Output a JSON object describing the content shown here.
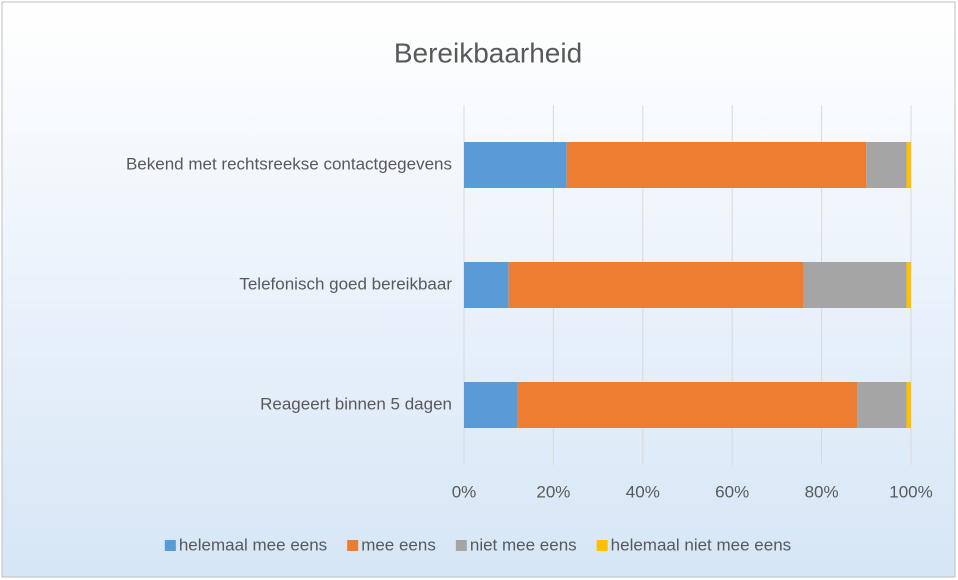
{
  "chart_data": {
    "type": "stacked_barh",
    "title": "Bereikbaarheid",
    "categories": [
      "Bekend met rechtsreekse contactgegevens",
      "Telefonisch goed bereikbaar",
      "Reageert binnen 5 dagen"
    ],
    "series": [
      {
        "name": "helemaal mee eens",
        "color": "#5b9bd5",
        "values": [
          23,
          10,
          12
        ]
      },
      {
        "name": "mee eens",
        "color": "#ed7d31",
        "values": [
          67,
          66,
          76
        ]
      },
      {
        "name": "niet mee eens",
        "color": "#a5a5a5",
        "values": [
          9,
          23,
          11
        ]
      },
      {
        "name": "helemaal niet mee eens",
        "color": "#ffc000",
        "values": [
          1,
          1,
          1
        ]
      }
    ],
    "xlim": [
      0,
      100
    ],
    "xticks": [
      {
        "value": 0,
        "label": "0%"
      },
      {
        "value": 20,
        "label": "20%"
      },
      {
        "value": 40,
        "label": "40%"
      },
      {
        "value": 60,
        "label": "60%"
      },
      {
        "value": 80,
        "label": "80%"
      },
      {
        "value": 100,
        "label": "100%"
      }
    ],
    "grid": true,
    "legend": "bottom"
  }
}
